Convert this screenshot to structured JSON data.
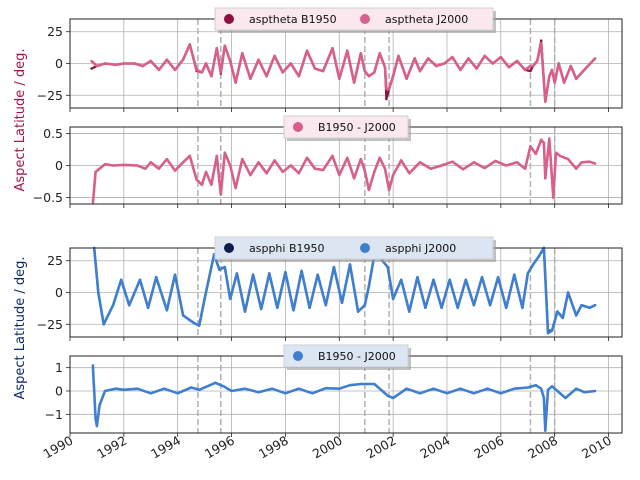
{
  "chart_data": [
    {
      "type": "line",
      "panel": "aspect-theta",
      "ylabel": "Aspect Latitude / deg.",
      "ylim": [
        -35,
        35
      ],
      "yticks": [
        -25,
        0,
        25
      ],
      "xlim": [
        1990.0,
        2010.5
      ],
      "grid": true,
      "legend": "top-center",
      "series": [
        {
          "name": "asptheta B1950",
          "color": "#8c1040",
          "x": [
            1990.8,
            1991.0,
            1991.3,
            1991.7,
            1992.0,
            1992.4,
            1992.7,
            1993.0,
            1993.3,
            1993.6,
            1993.9,
            1994.2,
            1994.45,
            1994.7,
            1994.9,
            1995.05,
            1995.25,
            1995.45,
            1995.6,
            1995.75,
            1995.95,
            1996.15,
            1996.4,
            1996.7,
            1997.0,
            1997.3,
            1997.6,
            1997.9,
            1998.2,
            1998.5,
            1998.8,
            1999.1,
            1999.4,
            1999.75,
            2000.0,
            2000.3,
            2000.55,
            2000.8,
            2000.95,
            2001.1,
            2001.3,
            2001.5,
            2001.7,
            2001.75,
            2001.85,
            2002.0,
            2002.2,
            2002.5,
            2002.8,
            2003.0,
            2003.3,
            2003.6,
            2003.9,
            2004.2,
            2004.5,
            2004.8,
            2005.1,
            2005.4,
            2005.7,
            2006.0,
            2006.3,
            2006.6,
            2006.9,
            2007.1,
            2007.2,
            2007.35,
            2007.5,
            2007.65,
            2007.8,
            2007.9,
            2008.0,
            2008.15,
            2008.35,
            2008.6,
            2008.8,
            2009.1,
            2009.5
          ],
          "y": [
            -4,
            -2,
            0,
            -1,
            0,
            0,
            -2,
            2,
            -5,
            3,
            -5,
            3,
            15,
            -6,
            -7,
            0,
            -10,
            12,
            -8,
            14,
            2,
            -15,
            8,
            -12,
            3,
            -10,
            6,
            -7,
            0,
            -10,
            10,
            -4,
            -6,
            12,
            -12,
            10,
            -15,
            8,
            -6,
            -10,
            -7,
            8,
            -3,
            -28,
            -20,
            -10,
            6,
            -12,
            4,
            -6,
            4,
            -2,
            0,
            5,
            -5,
            4,
            -4,
            6,
            0,
            5,
            -3,
            2,
            -5,
            -6,
            -2,
            2,
            18,
            -30,
            -10,
            -5,
            -15,
            0,
            -15,
            -2,
            -12,
            -5,
            4
          ]
        },
        {
          "name": "asptheta J2000",
          "color": "#d85f8b",
          "x": [
            1990.8,
            1991.0,
            1991.3,
            1991.7,
            1992.0,
            1992.4,
            1992.7,
            1993.0,
            1993.3,
            1993.6,
            1993.9,
            1994.2,
            1994.45,
            1994.7,
            1994.9,
            1995.05,
            1995.25,
            1995.45,
            1995.6,
            1995.75,
            1995.95,
            1996.15,
            1996.4,
            1996.7,
            1997.0,
            1997.3,
            1997.6,
            1997.9,
            1998.2,
            1998.5,
            1998.8,
            1999.1,
            1999.4,
            1999.75,
            2000.0,
            2000.3,
            2000.55,
            2000.8,
            2000.95,
            2001.1,
            2001.3,
            2001.5,
            2001.7,
            2001.75,
            2001.85,
            2002.0,
            2002.2,
            2002.5,
            2002.8,
            2003.0,
            2003.3,
            2003.6,
            2003.9,
            2004.2,
            2004.5,
            2004.8,
            2005.1,
            2005.4,
            2005.7,
            2006.0,
            2006.3,
            2006.6,
            2006.9,
            2007.1,
            2007.2,
            2007.35,
            2007.5,
            2007.65,
            2007.8,
            2007.9,
            2008.0,
            2008.15,
            2008.35,
            2008.6,
            2008.8,
            2009.1,
            2009.5
          ],
          "y": [
            2,
            -2,
            0,
            -1,
            0,
            0,
            -2,
            2,
            -5,
            3,
            -5,
            3,
            15,
            -5,
            -7,
            0,
            -10,
            12,
            -7,
            14,
            2,
            -15,
            8,
            -12,
            3,
            -10,
            6,
            -7,
            0,
            -10,
            10,
            -4,
            -6,
            12,
            -12,
            10,
            -15,
            8,
            -6,
            -10,
            -7,
            8,
            -3,
            -20,
            -20,
            -10,
            6,
            -12,
            4,
            -6,
            4,
            -2,
            0,
            5,
            -5,
            4,
            -4,
            6,
            0,
            5,
            -3,
            2,
            -5,
            -2,
            -2,
            2,
            16,
            -30,
            -10,
            -5,
            -15,
            0,
            -15,
            -2,
            -12,
            -5,
            4
          ]
        }
      ]
    },
    {
      "type": "line",
      "panel": "aspect-theta-difference",
      "ylim": [
        -0.6,
        0.6
      ],
      "yticks": [
        -0.5,
        0.0,
        0.5
      ],
      "xlim": [
        1990.0,
        2010.5
      ],
      "grid": true,
      "legend": "top-center",
      "series": [
        {
          "name": "B1950 - J2000",
          "color": "#d85f8b",
          "x": [
            1990.85,
            1990.95,
            1991.1,
            1991.3,
            1991.6,
            1992.0,
            1992.5,
            1992.8,
            1993.0,
            1993.3,
            1993.6,
            1993.9,
            1994.2,
            1994.45,
            1994.7,
            1994.9,
            1995.05,
            1995.25,
            1995.45,
            1995.6,
            1995.75,
            1995.95,
            1996.15,
            1996.4,
            1996.7,
            1997.0,
            1997.3,
            1997.6,
            1997.9,
            1998.2,
            1998.5,
            1998.8,
            1999.1,
            1999.4,
            1999.75,
            2000.0,
            2000.3,
            2000.55,
            2000.8,
            2000.95,
            2001.1,
            2001.3,
            2001.5,
            2001.7,
            2001.85,
            2002.0,
            2002.3,
            2002.6,
            2003.0,
            2003.4,
            2003.8,
            2004.2,
            2004.6,
            2005.0,
            2005.4,
            2005.8,
            2006.2,
            2006.6,
            2006.9,
            2007.1,
            2007.3,
            2007.5,
            2007.6,
            2007.65,
            2007.8,
            2007.95,
            2008.05,
            2008.2,
            2008.5,
            2008.8,
            2009.0,
            2009.3,
            2009.5
          ],
          "y": [
            -0.58,
            -0.1,
            -0.05,
            0.02,
            0.0,
            0.01,
            0.0,
            -0.05,
            0.05,
            -0.05,
            0.1,
            -0.08,
            0.05,
            0.15,
            -0.22,
            -0.3,
            -0.1,
            -0.3,
            0.15,
            -0.45,
            0.2,
            0.0,
            -0.35,
            0.1,
            -0.15,
            0.05,
            -0.12,
            0.08,
            -0.1,
            0.0,
            -0.12,
            0.12,
            -0.05,
            -0.07,
            0.15,
            -0.15,
            0.12,
            -0.2,
            0.1,
            -0.08,
            -0.38,
            -0.1,
            0.12,
            -0.05,
            -0.38,
            -0.15,
            0.08,
            -0.12,
            0.05,
            -0.05,
            0.0,
            0.06,
            -0.06,
            0.05,
            -0.04,
            0.07,
            0.0,
            0.05,
            -0.05,
            0.3,
            0.18,
            0.4,
            0.35,
            -0.2,
            0.42,
            -0.5,
            0.2,
            0.15,
            0.1,
            -0.05,
            0.05,
            0.06,
            0.03
          ]
        }
      ]
    },
    {
      "type": "line",
      "panel": "aspect-phi",
      "ylabel": "Aspect Latitude / deg.",
      "ylim": [
        -35,
        35
      ],
      "yticks": [
        -25,
        0,
        25
      ],
      "xlim": [
        1990.0,
        2010.5
      ],
      "grid": true,
      "legend": "top-center",
      "series": [
        {
          "name": "aspphi B1950",
          "color": "#0b1f4d",
          "x": [
            1990.9,
            1991.05,
            1991.25,
            1991.6,
            1991.9,
            1992.2,
            1992.6,
            1992.9,
            1993.2,
            1993.6,
            1993.9,
            1994.2,
            1994.6,
            1994.8,
            1995.0,
            1995.35,
            1995.55,
            1995.75,
            1995.95,
            1996.2,
            1996.5,
            1996.8,
            1997.1,
            1997.4,
            1997.7,
            1998.0,
            1998.3,
            1998.6,
            1998.9,
            1999.2,
            1999.5,
            1999.8,
            2000.1,
            2000.4,
            2000.7,
            2000.95,
            2001.1,
            2001.35,
            2001.6,
            2001.8,
            2002.0,
            2002.3,
            2002.6,
            2002.9,
            2003.2,
            2003.5,
            2003.8,
            2004.1,
            2004.4,
            2004.7,
            2005.0,
            2005.3,
            2005.6,
            2005.9,
            2006.2,
            2006.5,
            2006.8,
            2007.0,
            2007.2,
            2007.4,
            2007.6,
            2007.75,
            2007.9,
            2008.1,
            2008.3,
            2008.5,
            2008.8,
            2009.0,
            2009.3,
            2009.5
          ],
          "y": [
            35,
            0,
            -25,
            -10,
            10,
            -10,
            10,
            -12,
            12,
            -14,
            14,
            -18,
            -24,
            -26,
            -5,
            30,
            18,
            20,
            -5,
            15,
            -15,
            14,
            -13,
            15,
            -12,
            16,
            -14,
            17,
            -12,
            14,
            -10,
            20,
            -8,
            22,
            -15,
            -10,
            5,
            35,
            25,
            20,
            -5,
            10,
            -15,
            12,
            -12,
            10,
            -12,
            10,
            -12,
            10,
            -10,
            12,
            -10,
            12,
            -12,
            14,
            -12,
            15,
            22,
            28,
            35,
            -30,
            -30,
            -15,
            -20,
            0,
            -18,
            -10,
            -12,
            -10
          ]
        },
        {
          "name": "aspphi J2000",
          "color": "#3f7fcf",
          "x": [
            1990.9,
            1991.05,
            1991.25,
            1991.6,
            1991.9,
            1992.2,
            1992.6,
            1992.9,
            1993.2,
            1993.6,
            1993.9,
            1994.2,
            1994.6,
            1994.8,
            1995.0,
            1995.35,
            1995.55,
            1995.75,
            1995.95,
            1996.2,
            1996.5,
            1996.8,
            1997.1,
            1997.4,
            1997.7,
            1998.0,
            1998.3,
            1998.6,
            1998.9,
            1999.2,
            1999.5,
            1999.8,
            2000.1,
            2000.4,
            2000.7,
            2000.95,
            2001.1,
            2001.35,
            2001.6,
            2001.8,
            2002.0,
            2002.3,
            2002.6,
            2002.9,
            2003.2,
            2003.5,
            2003.8,
            2004.1,
            2004.4,
            2004.7,
            2005.0,
            2005.3,
            2005.6,
            2005.9,
            2006.2,
            2006.5,
            2006.8,
            2007.0,
            2007.2,
            2007.4,
            2007.6,
            2007.75,
            2007.9,
            2008.1,
            2008.3,
            2008.5,
            2008.8,
            2009.0,
            2009.3,
            2009.5
          ],
          "y": [
            35,
            0,
            -25,
            -10,
            10,
            -10,
            10,
            -12,
            12,
            -14,
            14,
            -18,
            -24,
            -26,
            -5,
            30,
            18,
            20,
            -5,
            15,
            -15,
            14,
            -13,
            15,
            -12,
            16,
            -14,
            17,
            -12,
            14,
            -10,
            20,
            -8,
            22,
            -15,
            -10,
            5,
            35,
            25,
            20,
            -5,
            10,
            -15,
            12,
            -12,
            10,
            -12,
            10,
            -12,
            10,
            -10,
            12,
            -10,
            12,
            -12,
            14,
            -12,
            15,
            22,
            28,
            35,
            -32,
            -30,
            -15,
            -20,
            0,
            -18,
            -10,
            -12,
            -10
          ]
        }
      ]
    },
    {
      "type": "line",
      "panel": "aspect-phi-difference",
      "ylim": [
        -1.8,
        1.5
      ],
      "yticks": [
        -1,
        0,
        1
      ],
      "xlim": [
        1990.0,
        2010.5
      ],
      "xticks": [
        1990,
        1992,
        1994,
        1996,
        1998,
        2000,
        2002,
        2004,
        2006,
        2008,
        2010
      ],
      "grid": true,
      "legend": "top-center",
      "series": [
        {
          "name": "B1950 - J2000",
          "color": "#3f7fcf",
          "x": [
            1990.85,
            1990.87,
            1990.9,
            1990.95,
            1991.0,
            1991.1,
            1991.3,
            1991.7,
            1992.0,
            1992.5,
            1993.0,
            1993.5,
            1994.0,
            1994.5,
            1994.8,
            1995.1,
            1995.4,
            1995.7,
            1996.0,
            1996.5,
            1997.0,
            1997.5,
            1998.0,
            1998.5,
            1999.0,
            1999.5,
            2000.0,
            2000.4,
            2000.8,
            2001.0,
            2001.3,
            2001.6,
            2001.8,
            2002.0,
            2002.5,
            2003.0,
            2003.5,
            2004.0,
            2004.5,
            2005.0,
            2005.5,
            2006.0,
            2006.5,
            2007.0,
            2007.3,
            2007.5,
            2007.6,
            2007.65,
            2007.75,
            2007.9,
            2008.1,
            2008.4,
            2008.8,
            2009.1,
            2009.5
          ],
          "y": [
            1.1,
            0.6,
            0.0,
            -1.2,
            -1.5,
            -0.6,
            0.0,
            0.1,
            0.05,
            0.1,
            -0.1,
            0.1,
            -0.1,
            0.15,
            0.05,
            0.2,
            0.35,
            0.2,
            0.0,
            0.1,
            -0.05,
            0.1,
            -0.1,
            0.1,
            -0.1,
            0.12,
            0.1,
            0.25,
            0.3,
            0.3,
            0.3,
            0.0,
            -0.2,
            -0.3,
            0.1,
            -0.1,
            0.1,
            -0.1,
            0.1,
            -0.1,
            0.1,
            -0.1,
            0.1,
            0.15,
            0.25,
            0.1,
            -0.3,
            -1.7,
            0.05,
            0.2,
            0.0,
            -0.3,
            0.1,
            -0.05,
            0.0
          ]
        }
      ]
    }
  ],
  "markers": [
    1994.75,
    1995.6,
    2000.95,
    2001.85,
    2007.1,
    2008.0
  ],
  "marker_color": "#b0b0b0"
}
